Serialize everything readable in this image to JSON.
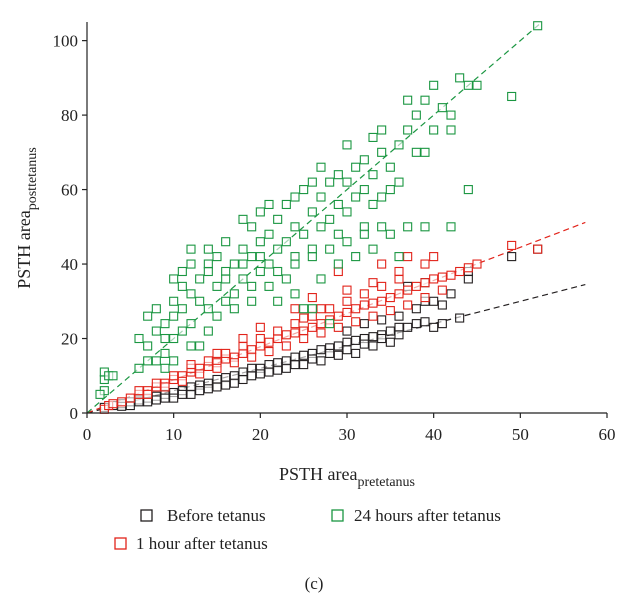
{
  "chart_data": {
    "type": "scatter",
    "title": "",
    "panel_label": "(c)",
    "xlabel": {
      "main": "PSTH area",
      "sub": "pretetanus"
    },
    "ylabel": {
      "main": "PSTH area",
      "sub": "posttetanus"
    },
    "xlim": [
      0,
      60
    ],
    "ylim": [
      0,
      105
    ],
    "xticks": [
      0,
      10,
      20,
      30,
      40,
      50,
      60
    ],
    "yticks": [
      0,
      20,
      40,
      60,
      80,
      100
    ],
    "grid": false,
    "legend_position": "bottom",
    "series": [
      {
        "name": "Before tetanus",
        "color": "#231f20",
        "fit_slope": 0.6,
        "points": [
          [
            2,
            1.5
          ],
          [
            3,
            2
          ],
          [
            4,
            2.5
          ],
          [
            5,
            3
          ],
          [
            6,
            3.5
          ],
          [
            7,
            4
          ],
          [
            8,
            4.5
          ],
          [
            9,
            5
          ],
          [
            10,
            5.5
          ],
          [
            11,
            6
          ],
          [
            12,
            7
          ],
          [
            13,
            7.5
          ],
          [
            14,
            8
          ],
          [
            15,
            9
          ],
          [
            16,
            9.5
          ],
          [
            17,
            10
          ],
          [
            18,
            11
          ],
          [
            19,
            12
          ],
          [
            20,
            12
          ],
          [
            21,
            13
          ],
          [
            22,
            13.5
          ],
          [
            23,
            14
          ],
          [
            24,
            15
          ],
          [
            25,
            15.5
          ],
          [
            26,
            16
          ],
          [
            27,
            17
          ],
          [
            28,
            17.5
          ],
          [
            29,
            18
          ],
          [
            30,
            19
          ],
          [
            31,
            19.5
          ],
          [
            32,
            20
          ],
          [
            33,
            20.5
          ],
          [
            34,
            21
          ],
          [
            35,
            22
          ],
          [
            36,
            23
          ],
          [
            37,
            23
          ],
          [
            38,
            24
          ],
          [
            39,
            24.5
          ],
          [
            40,
            23
          ],
          [
            41,
            24
          ],
          [
            43,
            25.5
          ],
          [
            49,
            42
          ],
          [
            52,
            44
          ],
          [
            6,
            3
          ],
          [
            8,
            3.5
          ],
          [
            11,
            5
          ],
          [
            13,
            6
          ],
          [
            15,
            7
          ],
          [
            17,
            8
          ],
          [
            19,
            10
          ],
          [
            21,
            11
          ],
          [
            23,
            12
          ],
          [
            25,
            13
          ],
          [
            27,
            14
          ],
          [
            29,
            15.5
          ],
          [
            31,
            16
          ],
          [
            33,
            18
          ],
          [
            35,
            19
          ],
          [
            30,
            22
          ],
          [
            32,
            24
          ],
          [
            34,
            25
          ],
          [
            36,
            26
          ],
          [
            38,
            28
          ],
          [
            40,
            30
          ],
          [
            42,
            32
          ],
          [
            44,
            36
          ],
          [
            37,
            34
          ],
          [
            39,
            30
          ],
          [
            41,
            29
          ],
          [
            10,
            4
          ],
          [
            12,
            5
          ],
          [
            14,
            6.5
          ],
          [
            16,
            7.5
          ],
          [
            18,
            9
          ],
          [
            20,
            10.5
          ],
          [
            22,
            11.5
          ],
          [
            24,
            13
          ],
          [
            26,
            14.5
          ],
          [
            28,
            16
          ],
          [
            30,
            17
          ],
          [
            32,
            18.5
          ],
          [
            34,
            20
          ],
          [
            36,
            21
          ],
          [
            9,
            4
          ],
          [
            7,
            3
          ],
          [
            5,
            2
          ],
          [
            4,
            1.8
          ],
          [
            44,
            38
          ],
          [
            39,
            35
          ]
        ]
      },
      {
        "name": "1 hour after tetanus",
        "color": "#e2231a",
        "fit_slope": 0.89,
        "points": [
          [
            2,
            1
          ],
          [
            2.5,
            2
          ],
          [
            3,
            2.5
          ],
          [
            4,
            3
          ],
          [
            5,
            4
          ],
          [
            6,
            5
          ],
          [
            7,
            6
          ],
          [
            8,
            7
          ],
          [
            9,
            8
          ],
          [
            10,
            9
          ],
          [
            11,
            10
          ],
          [
            12,
            11
          ],
          [
            13,
            12
          ],
          [
            14,
            12.5
          ],
          [
            15,
            13.5
          ],
          [
            16,
            14.5
          ],
          [
            17,
            15
          ],
          [
            18,
            16
          ],
          [
            19,
            17
          ],
          [
            20,
            18
          ],
          [
            21,
            19
          ],
          [
            22,
            20
          ],
          [
            23,
            21
          ],
          [
            24,
            21.5
          ],
          [
            25,
            22
          ],
          [
            26,
            23
          ],
          [
            27,
            24
          ],
          [
            28,
            25
          ],
          [
            29,
            26
          ],
          [
            30,
            27
          ],
          [
            31,
            28
          ],
          [
            32,
            29
          ],
          [
            33,
            29.5
          ],
          [
            34,
            30
          ],
          [
            35,
            31
          ],
          [
            36,
            32
          ],
          [
            37,
            33
          ],
          [
            38,
            34
          ],
          [
            39,
            35
          ],
          [
            40,
            36
          ],
          [
            41,
            36.5
          ],
          [
            42,
            37
          ],
          [
            43,
            38
          ],
          [
            44,
            39
          ],
          [
            45,
            40
          ],
          [
            49,
            45
          ],
          [
            52,
            44
          ],
          [
            6,
            6
          ],
          [
            8,
            8
          ],
          [
            10,
            10
          ],
          [
            12,
            12
          ],
          [
            14,
            14
          ],
          [
            16,
            16
          ],
          [
            18,
            18
          ],
          [
            20,
            20
          ],
          [
            22,
            22
          ],
          [
            24,
            24
          ],
          [
            26,
            26
          ],
          [
            28,
            28
          ],
          [
            30,
            30
          ],
          [
            32,
            32
          ],
          [
            34,
            34
          ],
          [
            36,
            36
          ],
          [
            7,
            5
          ],
          [
            9,
            7
          ],
          [
            11,
            8.5
          ],
          [
            13,
            10.5
          ],
          [
            15,
            12
          ],
          [
            17,
            13.5
          ],
          [
            19,
            15
          ],
          [
            21,
            16.5
          ],
          [
            23,
            18
          ],
          [
            25,
            20
          ],
          [
            27,
            21.5
          ],
          [
            29,
            23
          ],
          [
            31,
            24.5
          ],
          [
            33,
            26
          ],
          [
            35,
            27.5
          ],
          [
            37,
            29
          ],
          [
            39,
            31
          ],
          [
            41,
            33
          ],
          [
            34,
            40
          ],
          [
            37,
            42
          ],
          [
            40,
            42
          ],
          [
            30,
            33
          ],
          [
            27,
            28
          ],
          [
            25,
            25.5
          ],
          [
            29,
            38
          ],
          [
            33,
            35
          ],
          [
            36,
            38
          ],
          [
            39,
            40
          ],
          [
            20,
            23
          ],
          [
            18,
            20
          ],
          [
            15,
            16
          ],
          [
            12,
            13
          ],
          [
            24,
            28
          ],
          [
            26,
            31
          ]
        ]
      },
      {
        "name": "24 hours after tetanus",
        "color": "#1a9641",
        "fit_slope": 2.0,
        "points": [
          [
            2,
            6
          ],
          [
            2,
            9
          ],
          [
            2,
            11
          ],
          [
            2.5,
            10
          ],
          [
            3,
            10
          ],
          [
            1.5,
            5
          ],
          [
            6,
            20
          ],
          [
            7,
            18
          ],
          [
            7,
            26
          ],
          [
            8,
            22
          ],
          [
            8,
            28
          ],
          [
            9,
            16
          ],
          [
            9,
            24
          ],
          [
            10,
            20
          ],
          [
            10,
            26
          ],
          [
            10,
            30
          ],
          [
            11,
            28
          ],
          [
            11,
            34
          ],
          [
            11,
            38
          ],
          [
            12,
            24
          ],
          [
            12,
            32
          ],
          [
            12,
            40
          ],
          [
            13,
            30
          ],
          [
            13,
            36
          ],
          [
            14,
            28
          ],
          [
            14,
            40
          ],
          [
            14,
            44
          ],
          [
            15,
            34
          ],
          [
            15,
            42
          ],
          [
            16,
            30
          ],
          [
            16,
            38
          ],
          [
            16,
            46
          ],
          [
            17,
            32
          ],
          [
            17,
            40
          ],
          [
            18,
            36
          ],
          [
            18,
            44
          ],
          [
            18,
            52
          ],
          [
            19,
            34
          ],
          [
            19,
            42
          ],
          [
            19,
            50
          ],
          [
            20,
            38
          ],
          [
            20,
            46
          ],
          [
            20,
            54
          ],
          [
            21,
            40
          ],
          [
            21,
            48
          ],
          [
            21,
            56
          ],
          [
            22,
            44
          ],
          [
            22,
            52
          ],
          [
            23,
            46
          ],
          [
            23,
            56
          ],
          [
            24,
            42
          ],
          [
            24,
            50
          ],
          [
            24,
            58
          ],
          [
            25,
            48
          ],
          [
            25,
            60
          ],
          [
            26,
            44
          ],
          [
            26,
            54
          ],
          [
            26,
            62
          ],
          [
            27,
            50
          ],
          [
            27,
            58
          ],
          [
            27,
            66
          ],
          [
            28,
            52
          ],
          [
            28,
            62
          ],
          [
            29,
            48
          ],
          [
            29,
            56
          ],
          [
            29,
            64
          ],
          [
            30,
            54
          ],
          [
            30,
            62
          ],
          [
            30,
            72
          ],
          [
            31,
            58
          ],
          [
            31,
            66
          ],
          [
            32,
            50
          ],
          [
            32,
            60
          ],
          [
            32,
            68
          ],
          [
            33,
            56
          ],
          [
            33,
            64
          ],
          [
            33,
            74
          ],
          [
            34,
            58
          ],
          [
            34,
            70
          ],
          [
            34,
            76
          ],
          [
            35,
            60
          ],
          [
            35,
            66
          ],
          [
            36,
            62
          ],
          [
            36,
            72
          ],
          [
            37,
            76
          ],
          [
            37,
            84
          ],
          [
            38,
            70
          ],
          [
            38,
            80
          ],
          [
            39,
            70
          ],
          [
            39,
            84
          ],
          [
            40,
            76
          ],
          [
            40,
            88
          ],
          [
            41,
            82
          ],
          [
            42,
            76
          ],
          [
            42,
            80
          ],
          [
            43,
            90
          ],
          [
            44,
            88
          ],
          [
            44,
            60
          ],
          [
            45,
            88
          ],
          [
            49,
            85
          ],
          [
            52,
            104
          ],
          [
            8,
            14
          ],
          [
            9,
            12
          ],
          [
            10,
            14
          ],
          [
            12,
            18
          ],
          [
            14,
            22
          ],
          [
            15,
            26
          ],
          [
            17,
            28
          ],
          [
            19,
            30
          ],
          [
            21,
            34
          ],
          [
            23,
            36
          ],
          [
            25,
            28
          ],
          [
            27,
            36
          ],
          [
            29,
            40
          ],
          [
            31,
            42
          ],
          [
            33,
            44
          ],
          [
            35,
            48
          ],
          [
            37,
            50
          ],
          [
            39,
            50
          ],
          [
            42,
            50
          ],
          [
            10,
            36
          ],
          [
            12,
            44
          ],
          [
            14,
            38
          ],
          [
            16,
            36
          ],
          [
            18,
            40
          ],
          [
            20,
            42
          ],
          [
            22,
            38
          ],
          [
            24,
            40
          ],
          [
            26,
            42
          ],
          [
            28,
            44
          ],
          [
            30,
            46
          ],
          [
            32,
            48
          ],
          [
            34,
            50
          ],
          [
            36,
            42
          ],
          [
            28,
            24
          ],
          [
            26,
            28
          ],
          [
            24,
            32
          ],
          [
            22,
            30
          ],
          [
            13,
            18
          ],
          [
            11,
            22
          ],
          [
            9,
            20
          ],
          [
            7,
            14
          ],
          [
            6,
            12
          ]
        ]
      }
    ],
    "legend": [
      {
        "label": "Before tetanus",
        "color": "#231f20"
      },
      {
        "label": "24 hours after tetanus",
        "color": "#1a9641"
      },
      {
        "label": "1 hour after tetanus",
        "color": "#e2231a"
      }
    ]
  }
}
